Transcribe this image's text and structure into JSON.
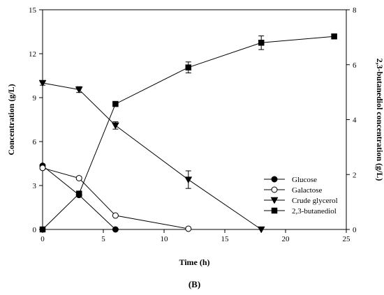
{
  "chart_data": {
    "type": "line",
    "xlabel": "Time (h)",
    "ylabel_left": "Concentration (g/L)",
    "ylabel_right": "2,3-butanediol concentration (g/L)",
    "panel_label": "(B)",
    "xlim": [
      0,
      25
    ],
    "ylim_left": [
      0,
      15
    ],
    "ylim_right": [
      0,
      8
    ],
    "x_ticks": [
      "0",
      "5",
      "10",
      "15",
      "20",
      "25"
    ],
    "y_left_ticks": [
      "0",
      "3",
      "6",
      "9",
      "12",
      "15"
    ],
    "y_right_ticks": [
      "0",
      "2",
      "4",
      "6",
      "8"
    ],
    "legend_position": "lower-right",
    "grid": false,
    "series": [
      {
        "name": "Glucose",
        "axis": "left",
        "marker": "circle-filled",
        "x": [
          0,
          3,
          6
        ],
        "y": [
          4.35,
          2.35,
          0.0
        ],
        "err": [
          0.1,
          0.1,
          0.0
        ]
      },
      {
        "name": "Galactose",
        "axis": "left",
        "marker": "circle-open",
        "x": [
          0,
          3,
          6,
          12
        ],
        "y": [
          4.2,
          3.5,
          0.95,
          0.05
        ],
        "err": [
          0.1,
          0.1,
          0.05,
          0.0
        ]
      },
      {
        "name": "Crude glycerol",
        "axis": "left",
        "marker": "triangle-down",
        "x": [
          0,
          3,
          6,
          12,
          18
        ],
        "y": [
          10.0,
          9.55,
          7.1,
          3.4,
          0.0
        ],
        "err": [
          0.15,
          0.2,
          0.25,
          0.6,
          0.0
        ]
      },
      {
        "name": "2,3-butanediol",
        "axis": "right",
        "marker": "square",
        "x": [
          0,
          3,
          6,
          12,
          18,
          24
        ],
        "y": [
          0.0,
          1.3,
          4.57,
          5.9,
          6.8,
          7.03
        ],
        "err": [
          0.0,
          0.1,
          0.07,
          0.2,
          0.25,
          0.07
        ]
      }
    ]
  }
}
